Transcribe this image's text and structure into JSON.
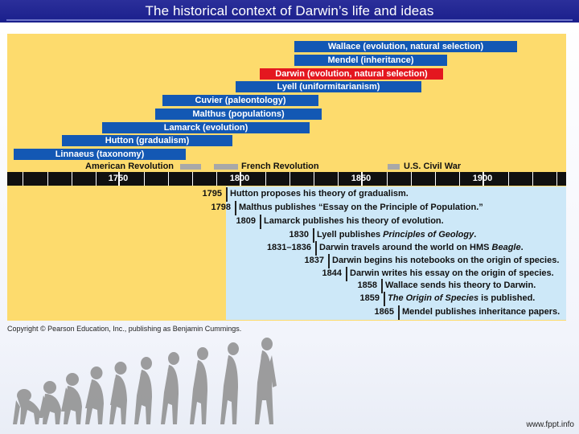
{
  "title": "The historical context of Darwin’s life and ideas",
  "bars": [
    {
      "label": "Wallace (evolution, natural selection)",
      "color": "#1358b4"
    },
    {
      "label": "Mendel (inheritance)",
      "color": "#1358b4"
    },
    {
      "label": "Darwin (evolution, natural selection)",
      "color": "#e4171f"
    },
    {
      "label": "Lyell (uniformitarianism)",
      "color": "#1358b4"
    },
    {
      "label": "Cuvier (paleontology)",
      "color": "#1358b4"
    },
    {
      "label": "Malthus (populations)",
      "color": "#1358b4"
    },
    {
      "label": "Lamarck (evolution)",
      "color": "#1358b4"
    },
    {
      "label": "Hutton (gradualism)",
      "color": "#1358b4"
    },
    {
      "label": "Linnaeus (taxonomy)",
      "color": "#1358b4"
    }
  ],
  "historical_events": [
    {
      "label": "American Revolution"
    },
    {
      "label": "French Revolution"
    },
    {
      "label": "U.S. Civil War"
    }
  ],
  "axis": {
    "labels": [
      "1750",
      "1800",
      "1850",
      "1900"
    ]
  },
  "events": [
    {
      "year": "1795",
      "text": "Hutton proposes his theory of gradualism."
    },
    {
      "year": "1798",
      "text": "Malthus publishes “Essay on the Principle of Population.”"
    },
    {
      "year": "1809",
      "text": "Lamarck publishes his theory of evolution."
    },
    {
      "year": "1830",
      "text_pre": "Lyell publishes ",
      "text_italic": "Principles of Geology",
      "text_post": "."
    },
    {
      "year": "1831–1836",
      "text_pre": "Darwin travels around the world on HMS ",
      "text_italic": "Beagle",
      "text_post": "."
    },
    {
      "year": "1837",
      "text": "Darwin begins his notebooks on the origin of species."
    },
    {
      "year": "1844",
      "text": "Darwin writes his essay on the origin of species."
    },
    {
      "year": "1858",
      "text": "Wallace sends his theory to Darwin."
    },
    {
      "year": "1859",
      "text_italic": "The Origin of Species",
      "text_post": " is published."
    },
    {
      "year": "1865",
      "text": "Mendel publishes inheritance papers."
    }
  ],
  "copyright": "Copyright © Pearson Education, Inc., publishing as Benjamin Cummings.",
  "footer_url": "www.fppt.info",
  "decoration": {
    "icon": "human-evolution-silhouettes"
  }
}
